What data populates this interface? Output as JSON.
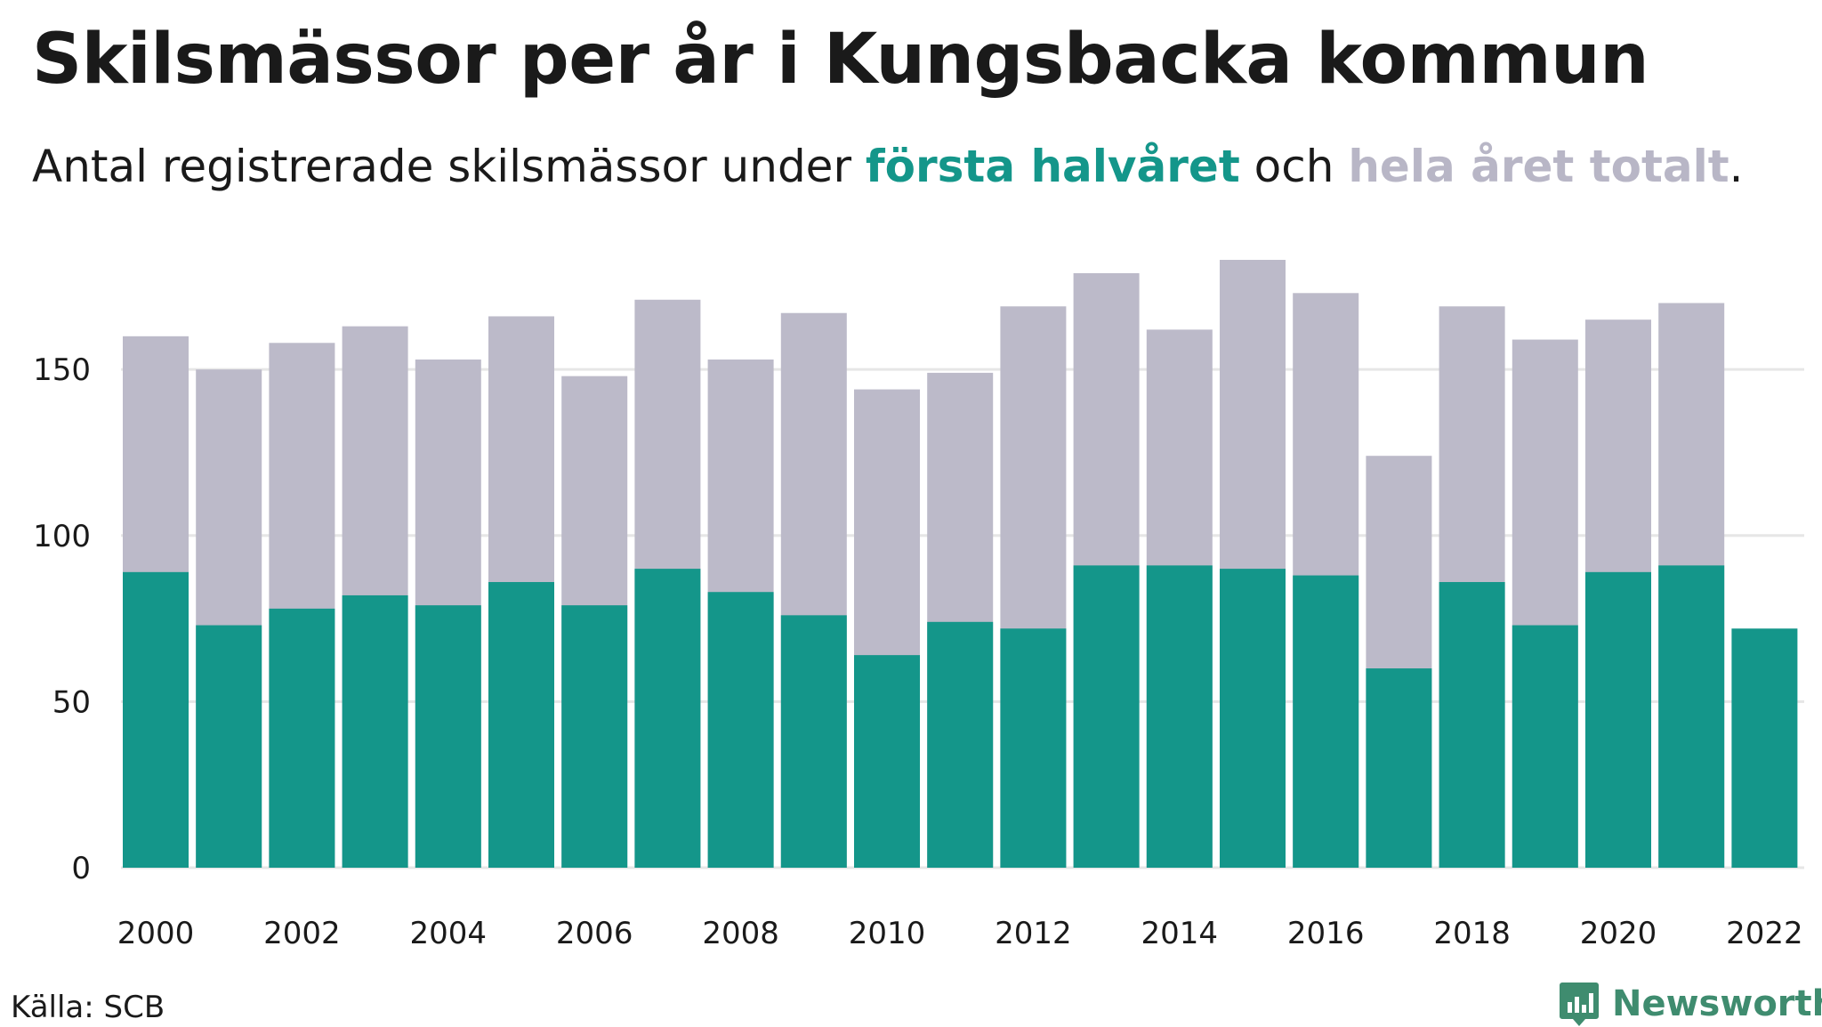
{
  "title": "Skilsmässor per år i Kungsbacka kommun",
  "subtitle": {
    "part1": "Antal registrerade skilsmässor under ",
    "highlight1": "första halvåret",
    "part2": " och ",
    "highlight2": "hela året totalt",
    "part3": "."
  },
  "source": "Källa: SCB",
  "brand": "Newsworthy",
  "colors": {
    "first_half": "#14968a",
    "full_year": "#bcbac9",
    "grid": "#e6e6e6",
    "brand": "#3f8c6f"
  },
  "chart_data": {
    "type": "bar",
    "categories": [
      "2000",
      "2001",
      "2002",
      "2003",
      "2004",
      "2005",
      "2006",
      "2007",
      "2008",
      "2009",
      "2010",
      "2011",
      "2012",
      "2013",
      "2014",
      "2015",
      "2016",
      "2017",
      "2018",
      "2019",
      "2020",
      "2021",
      "2022"
    ],
    "series": [
      {
        "name": "hela året totalt",
        "values": [
          160,
          150,
          158,
          163,
          153,
          166,
          148,
          171,
          153,
          167,
          144,
          149,
          169,
          179,
          162,
          183,
          173,
          124,
          169,
          159,
          165,
          170,
          null
        ]
      },
      {
        "name": "första halvåret",
        "values": [
          89,
          73,
          78,
          82,
          79,
          86,
          79,
          90,
          83,
          76,
          64,
          74,
          72,
          91,
          91,
          90,
          88,
          60,
          86,
          73,
          89,
          91,
          72
        ]
      }
    ],
    "x_tick_labels": [
      "2000",
      "2002",
      "2004",
      "2006",
      "2008",
      "2010",
      "2012",
      "2014",
      "2016",
      "2018",
      "2020",
      "2022"
    ],
    "y_ticks": [
      0,
      50,
      100,
      150
    ],
    "ylim": [
      0,
      183
    ],
    "overlay": true,
    "grid": "horizontal"
  }
}
